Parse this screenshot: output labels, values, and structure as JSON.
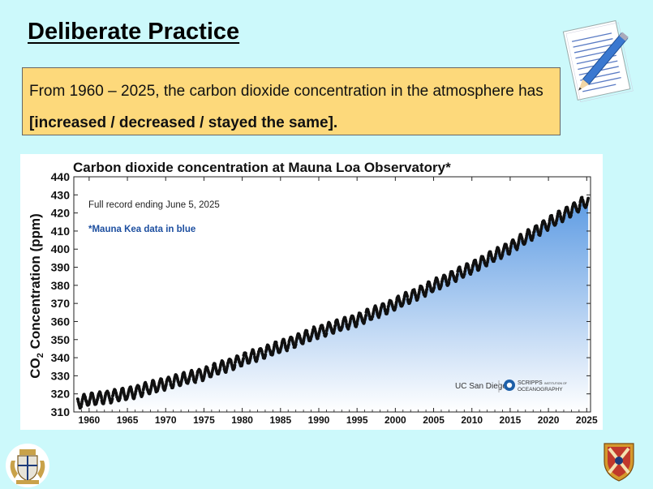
{
  "slide": {
    "title": "Deliberate Practice",
    "question": {
      "prefix": "From 1960 – 2025, the carbon dioxide concentration in the atmosphere has ",
      "options": "[increased / decreased / stayed the same]."
    }
  },
  "icons": {
    "top_right": "notepad-pencil-icon",
    "bottom_left": "school-crest-icon",
    "bottom_right": "school-shield-icon"
  },
  "chart_data": {
    "type": "scatter",
    "title": "Carbon dioxide concentration at Mauna Loa Observatory*",
    "ylabel_main": "CO",
    "ylabel_sub": "2",
    "ylabel_rest": " Concentration (ppm)",
    "xlabel": "",
    "annotation": "Full record ending June 5, 2025",
    "note": "*Mauna Kea data in blue",
    "logos": [
      "UC San Diego",
      "SCRIPPS",
      "INSTITUTION OF",
      "OCEANOGRAPHY"
    ],
    "xlim": [
      1958,
      2025.5
    ],
    "ylim": [
      310,
      440
    ],
    "x_ticks": [
      1960,
      1965,
      1970,
      1975,
      1980,
      1985,
      1990,
      1995,
      2000,
      2005,
      2010,
      2015,
      2020,
      2025
    ],
    "y_ticks": [
      310,
      320,
      330,
      340,
      350,
      360,
      370,
      380,
      390,
      400,
      410,
      420,
      430,
      440
    ],
    "trend_points": [
      [
        1958.5,
        315.3
      ],
      [
        1960,
        316.9
      ],
      [
        1965,
        320.0
      ],
      [
        1970,
        325.7
      ],
      [
        1975,
        331.1
      ],
      [
        1980,
        338.8
      ],
      [
        1985,
        346.1
      ],
      [
        1990,
        354.4
      ],
      [
        1995,
        360.9
      ],
      [
        2000,
        369.7
      ],
      [
        2005,
        379.8
      ],
      [
        2010,
        389.9
      ],
      [
        2015,
        401.0
      ],
      [
        2020,
        414.2
      ],
      [
        2025,
        426.5
      ]
    ],
    "seasonal_amplitude": 3.2,
    "fill_color": "#5d9be3",
    "point_color": "#111111"
  }
}
